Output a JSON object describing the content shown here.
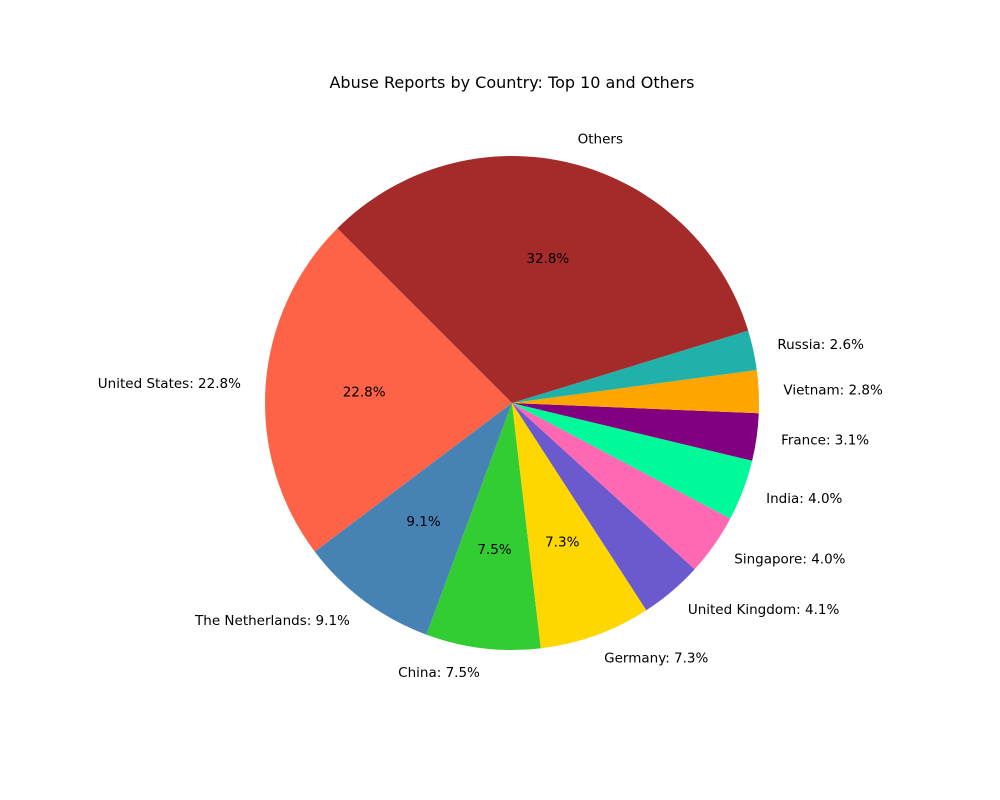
{
  "chart_data": {
    "type": "pie",
    "title": "Abuse Reports by Country: Top 10 and Others",
    "slices": [
      {
        "label": "United States: 22.8%",
        "value": 22.8,
        "pct_label": "22.8%",
        "color": "#ff6347"
      },
      {
        "label": "The Netherlands: 9.1%",
        "value": 9.1,
        "pct_label": "9.1%",
        "color": "#4682b4"
      },
      {
        "label": "China: 7.5%",
        "value": 7.5,
        "pct_label": "7.5%",
        "color": "#32cd32"
      },
      {
        "label": "Germany: 7.3%",
        "value": 7.3,
        "pct_label": "7.3%",
        "color": "#ffd700"
      },
      {
        "label": "United Kingdom: 4.1%",
        "value": 4.1,
        "pct_label": "",
        "color": "#6a5acd"
      },
      {
        "label": "Singapore: 4.0%",
        "value": 4.0,
        "pct_label": "",
        "color": "#ff69b4"
      },
      {
        "label": "India: 4.0%",
        "value": 4.0,
        "pct_label": "",
        "color": "#00fa9a"
      },
      {
        "label": "France: 3.1%",
        "value": 3.1,
        "pct_label": "",
        "color": "#800080"
      },
      {
        "label": "Vietnam: 2.8%",
        "value": 2.8,
        "pct_label": "",
        "color": "#ffa500"
      },
      {
        "label": "Russia: 2.6%",
        "value": 2.6,
        "pct_label": "",
        "color": "#20b2aa"
      },
      {
        "label": "Others",
        "value": 32.8,
        "pct_label": "32.8%",
        "color": "#a52a2a"
      }
    ],
    "start_angle_deg": 135,
    "direction": "counterclockwise"
  }
}
